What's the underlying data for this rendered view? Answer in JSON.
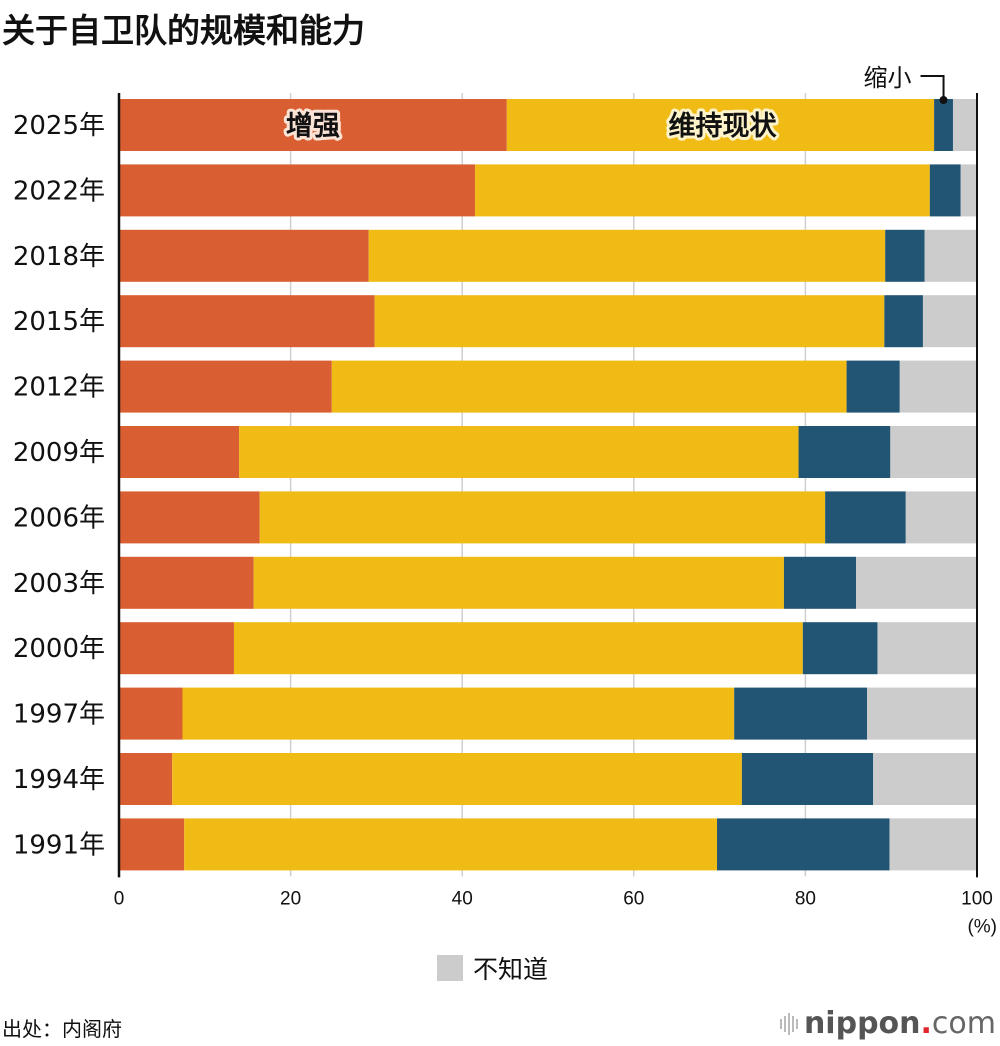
{
  "title": "关于自卫队的规模和能力",
  "source": "出处：内阁府",
  "logo": {
    "name": "nippon",
    "dot": ".",
    "tld": "com"
  },
  "legend": {
    "label": "不知道",
    "color": "#cccccc"
  },
  "chart_data": {
    "type": "bar",
    "orientation": "horizontal",
    "stacked": true,
    "title": "关于自卫队的规模和能力",
    "xlabel": "",
    "x_unit": "(%)",
    "xlim": [
      0,
      100
    ],
    "xticks": [
      "0",
      "20",
      "40",
      "60",
      "80",
      "100"
    ],
    "grid": true,
    "categories": [
      "2025年",
      "2022年",
      "2018年",
      "2015年",
      "2012年",
      "2009年",
      "2006年",
      "2003年",
      "2000年",
      "1997年",
      "1994年",
      "1991年"
    ],
    "series": [
      {
        "name": "增强",
        "color": "#d95f33",
        "values": [
          45.2,
          41.5,
          29.1,
          29.8,
          24.8,
          14.0,
          16.4,
          15.7,
          13.4,
          7.4,
          6.2,
          7.6
        ]
      },
      {
        "name": "维持现状",
        "color": "#f0bb15",
        "values": [
          49.8,
          53.0,
          60.2,
          59.4,
          60.0,
          65.2,
          65.9,
          61.8,
          66.3,
          64.3,
          66.4,
          62.1
        ]
      },
      {
        "name": "缩小",
        "color": "#225574",
        "values": [
          2.2,
          3.6,
          4.6,
          4.5,
          6.2,
          10.7,
          9.4,
          8.4,
          8.7,
          15.5,
          15.3,
          20.1
        ]
      },
      {
        "name": "不知道",
        "color": "#cccccc",
        "values": [
          2.8,
          1.9,
          6.1,
          6.3,
          9.0,
          10.1,
          8.3,
          14.1,
          11.6,
          12.8,
          12.1,
          10.2
        ]
      }
    ],
    "annotations": [
      {
        "text": "增强",
        "series": "增强",
        "category": "2025年"
      },
      {
        "text": "维持现状",
        "series": "维持现状",
        "category": "2025年"
      },
      {
        "text": "缩小",
        "series": "缩小",
        "category": "2025年",
        "style": "leader-line"
      }
    ],
    "legend": {
      "entries": [
        "不知道"
      ],
      "position": "bottom-center"
    }
  }
}
